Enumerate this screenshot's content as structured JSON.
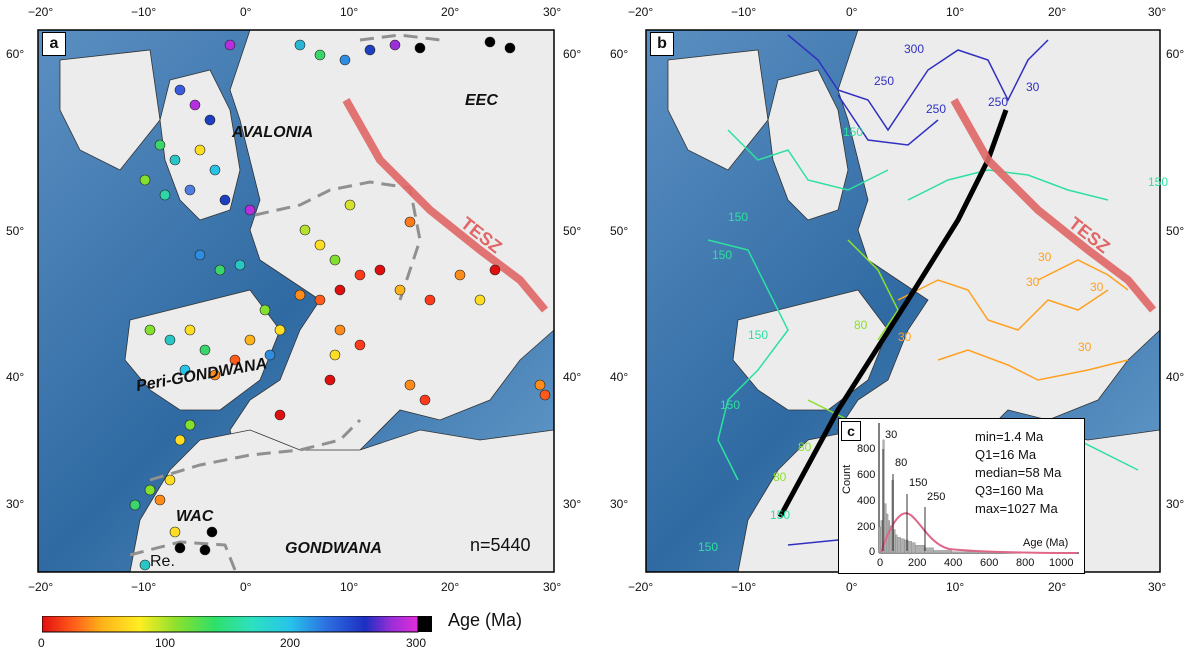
{
  "panels": {
    "a": {
      "letter": "a",
      "labels": {
        "avalonia": "AVALONIA",
        "eec": "EEC",
        "peri_gondwana": "Peri-GONDWANA",
        "wac": "WAC",
        "gondwana": "GONDWANA",
        "re": "Re.",
        "tesz": "TESZ",
        "count": "n=5440"
      }
    },
    "b": {
      "letter": "b",
      "tesz": "TESZ",
      "contour_labels": [
        "300",
        "250",
        "250",
        "250",
        "30",
        "250",
        "150",
        "150",
        "150",
        "150",
        "30",
        "30",
        "30",
        "80",
        "150",
        "150",
        "80",
        "150",
        "80",
        "30",
        "30",
        "150"
      ]
    },
    "c": {
      "letter": "c",
      "stats": {
        "min": "min=1.4 Ma",
        "q1": "Q1=16 Ma",
        "median": "median=58 Ma",
        "q3": "Q3=160 Ma",
        "max": "max=1027 Ma"
      },
      "peak_labels": [
        "30",
        "80",
        "150",
        "250"
      ],
      "ylabel": "Count",
      "xlabel": "Age (Ma)",
      "yticks": [
        "0",
        "200",
        "400",
        "600",
        "800"
      ],
      "xticks": [
        "0",
        "200",
        "400",
        "600",
        "800",
        "1000"
      ]
    }
  },
  "axes": {
    "lon_ticks": [
      "−20°",
      "−10°",
      "0°",
      "10°",
      "20°",
      "30°"
    ],
    "lat_ticks": [
      "30°",
      "40°",
      "50°",
      "60°"
    ]
  },
  "colorbar": {
    "title": "Age (Ma)",
    "ticks": [
      "0",
      "100",
      "200",
      "300"
    ],
    "range": [
      0,
      300
    ]
  },
  "chart_data": {
    "type": "bar",
    "title": "",
    "xlabel": "Age (Ma)",
    "ylabel": "Count",
    "xlim": [
      0,
      1100
    ],
    "ylim": [
      0,
      1000
    ],
    "categories": [
      "10",
      "20",
      "30",
      "40",
      "50",
      "60",
      "70",
      "80",
      "90",
      "100",
      "120",
      "140",
      "160",
      "180",
      "200",
      "250",
      "300",
      "400",
      "600",
      "1000"
    ],
    "values": [
      200,
      250,
      870,
      380,
      300,
      250,
      210,
      560,
      180,
      140,
      120,
      110,
      100,
      90,
      80,
      60,
      40,
      20,
      10,
      5
    ]
  },
  "colors": {
    "tesz": "#e06666",
    "frame": "#000000",
    "dashed": "#909090",
    "ocean_deep": "#2c6aa0",
    "land": "#f0f0f0"
  }
}
